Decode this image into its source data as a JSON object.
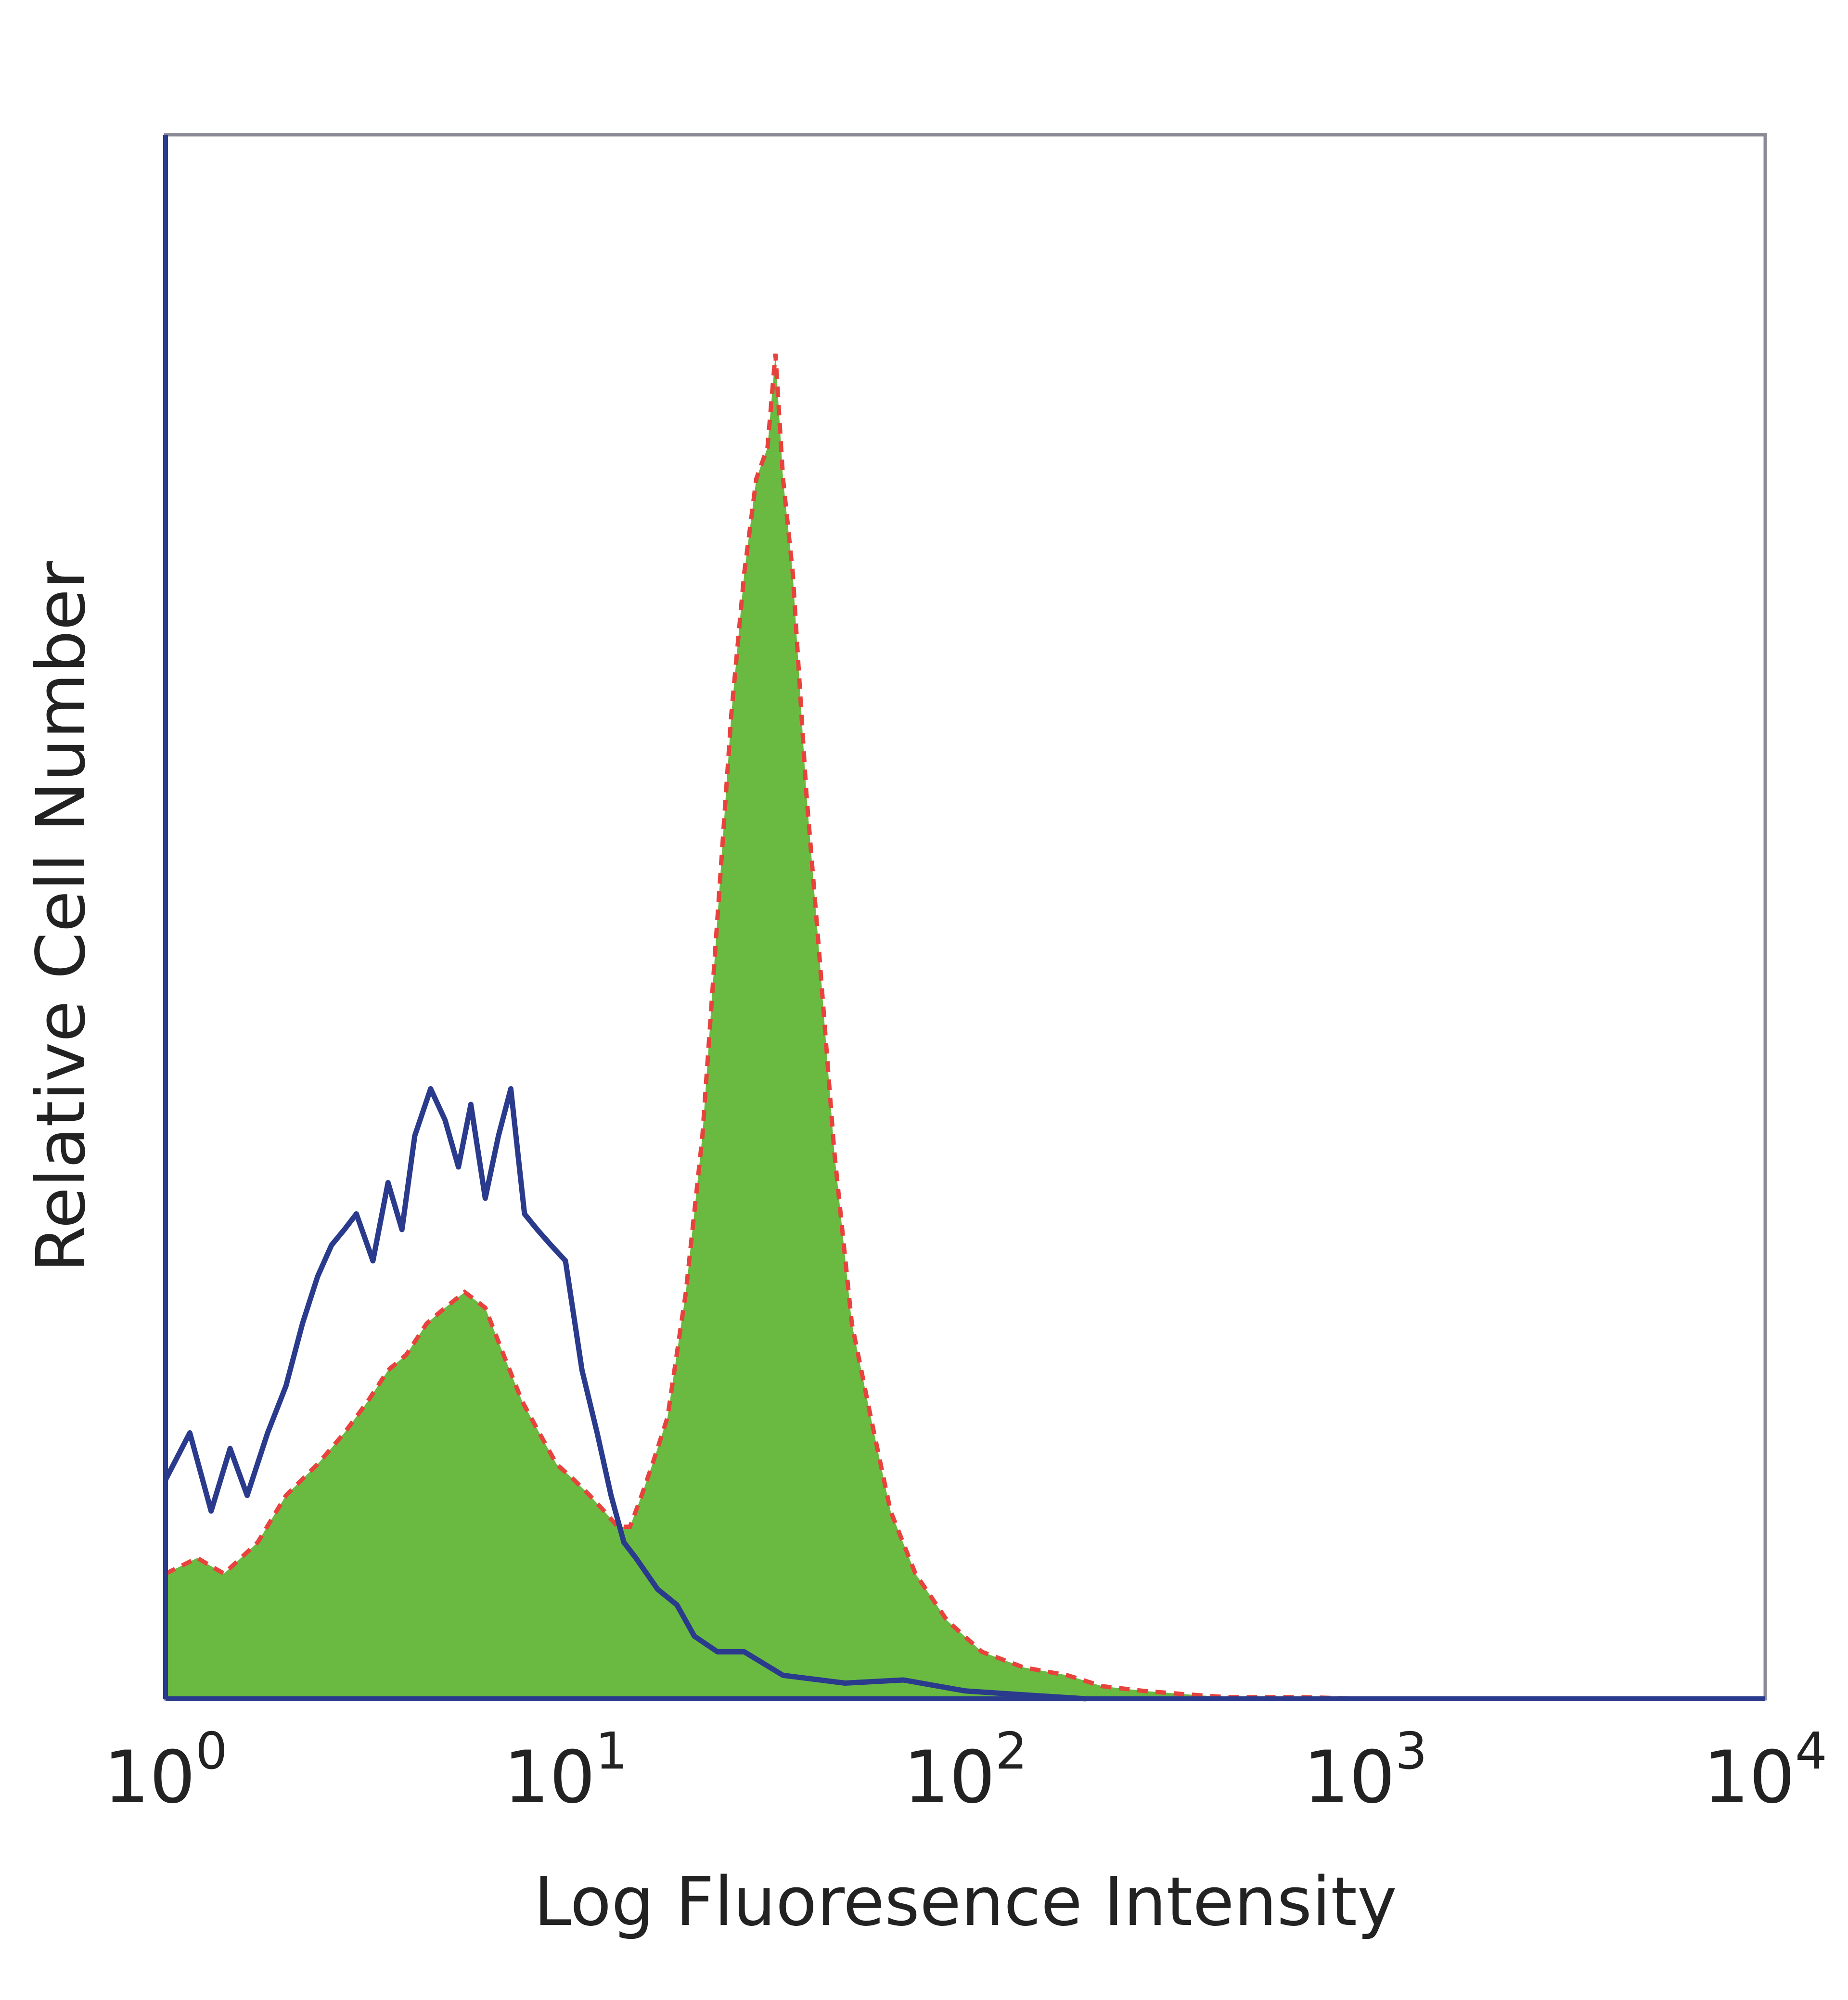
{
  "chart_data": {
    "type": "area",
    "xscale": "log",
    "xlim": [
      1,
      10000
    ],
    "ylim": [
      0,
      1.0
    ],
    "grid": false,
    "legend": "none",
    "xlabel": "Log Fluoresence Intensity",
    "ylabel": "Relative Cell Number",
    "x_ticks": [
      {
        "base": "10",
        "exp": "0",
        "value": 1
      },
      {
        "base": "10",
        "exp": "1",
        "value": 10
      },
      {
        "base": "10",
        "exp": "2",
        "value": 100
      },
      {
        "base": "10",
        "exp": "3",
        "value": 1000
      },
      {
        "base": "10",
        "exp": "4",
        "value": 10000
      }
    ],
    "series": [
      {
        "style": "line",
        "color": "#2a3a8c",
        "points": [
          [
            1,
            0.14
          ],
          [
            1.15,
            0.17
          ],
          [
            1.3,
            0.12
          ],
          [
            1.45,
            0.16
          ],
          [
            1.6,
            0.13
          ],
          [
            1.8,
            0.17
          ],
          [
            2.0,
            0.2
          ],
          [
            2.2,
            0.24
          ],
          [
            2.4,
            0.27
          ],
          [
            2.6,
            0.29
          ],
          [
            2.8,
            0.3
          ],
          [
            3.0,
            0.31
          ],
          [
            3.3,
            0.28
          ],
          [
            3.6,
            0.33
          ],
          [
            3.9,
            0.3
          ],
          [
            4.2,
            0.36
          ],
          [
            4.6,
            0.39
          ],
          [
            5.0,
            0.37
          ],
          [
            5.4,
            0.34
          ],
          [
            5.8,
            0.38
          ],
          [
            6.3,
            0.32
          ],
          [
            6.8,
            0.36
          ],
          [
            7.3,
            0.39
          ],
          [
            7.9,
            0.31
          ],
          [
            8.5,
            0.3
          ],
          [
            9.2,
            0.29
          ],
          [
            10,
            0.28
          ],
          [
            11,
            0.21
          ],
          [
            12,
            0.17
          ],
          [
            13,
            0.13
          ],
          [
            14,
            0.1
          ],
          [
            15,
            0.09
          ],
          [
            17,
            0.07
          ],
          [
            19,
            0.06
          ],
          [
            21,
            0.04
          ],
          [
            24,
            0.03
          ],
          [
            28,
            0.03
          ],
          [
            35,
            0.015
          ],
          [
            50,
            0.01
          ],
          [
            70,
            0.012
          ],
          [
            100,
            0.005
          ],
          [
            150,
            0.002
          ],
          [
            200,
            0
          ]
        ]
      },
      {
        "style": "filled",
        "color": "#6aba42",
        "edge_color": "#e8423c",
        "points": [
          [
            1,
            0.08
          ],
          [
            1.2,
            0.09
          ],
          [
            1.4,
            0.08
          ],
          [
            1.7,
            0.1
          ],
          [
            2.0,
            0.13
          ],
          [
            2.4,
            0.15
          ],
          [
            2.8,
            0.17
          ],
          [
            3.2,
            0.19
          ],
          [
            3.6,
            0.21
          ],
          [
            4.0,
            0.22
          ],
          [
            4.5,
            0.24
          ],
          [
            5.0,
            0.25
          ],
          [
            5.6,
            0.26
          ],
          [
            6.3,
            0.25
          ],
          [
            7.0,
            0.22
          ],
          [
            7.8,
            0.19
          ],
          [
            8.6,
            0.17
          ],
          [
            9.5,
            0.15
          ],
          [
            10.5,
            0.14
          ],
          [
            11.5,
            0.13
          ],
          [
            12.5,
            0.12
          ],
          [
            13.5,
            0.11
          ],
          [
            14.5,
            0.11
          ],
          [
            15.5,
            0.13
          ],
          [
            16.5,
            0.15
          ],
          [
            18,
            0.18
          ],
          [
            20,
            0.26
          ],
          [
            22,
            0.36
          ],
          [
            24,
            0.5
          ],
          [
            26,
            0.63
          ],
          [
            28,
            0.72
          ],
          [
            30,
            0.78
          ],
          [
            32,
            0.8
          ],
          [
            33.5,
            0.86
          ],
          [
            35,
            0.78
          ],
          [
            37,
            0.72
          ],
          [
            40,
            0.58
          ],
          [
            43,
            0.48
          ],
          [
            47,
            0.35
          ],
          [
            52,
            0.24
          ],
          [
            58,
            0.18
          ],
          [
            65,
            0.12
          ],
          [
            75,
            0.08
          ],
          [
            90,
            0.05
          ],
          [
            110,
            0.03
          ],
          [
            140,
            0.02
          ],
          [
            180,
            0.015
          ],
          [
            220,
            0.008
          ],
          [
            280,
            0.005
          ],
          [
            350,
            0.003
          ],
          [
            450,
            0.001
          ],
          [
            700,
            0.001
          ],
          [
            1000,
            0
          ]
        ]
      }
    ]
  }
}
